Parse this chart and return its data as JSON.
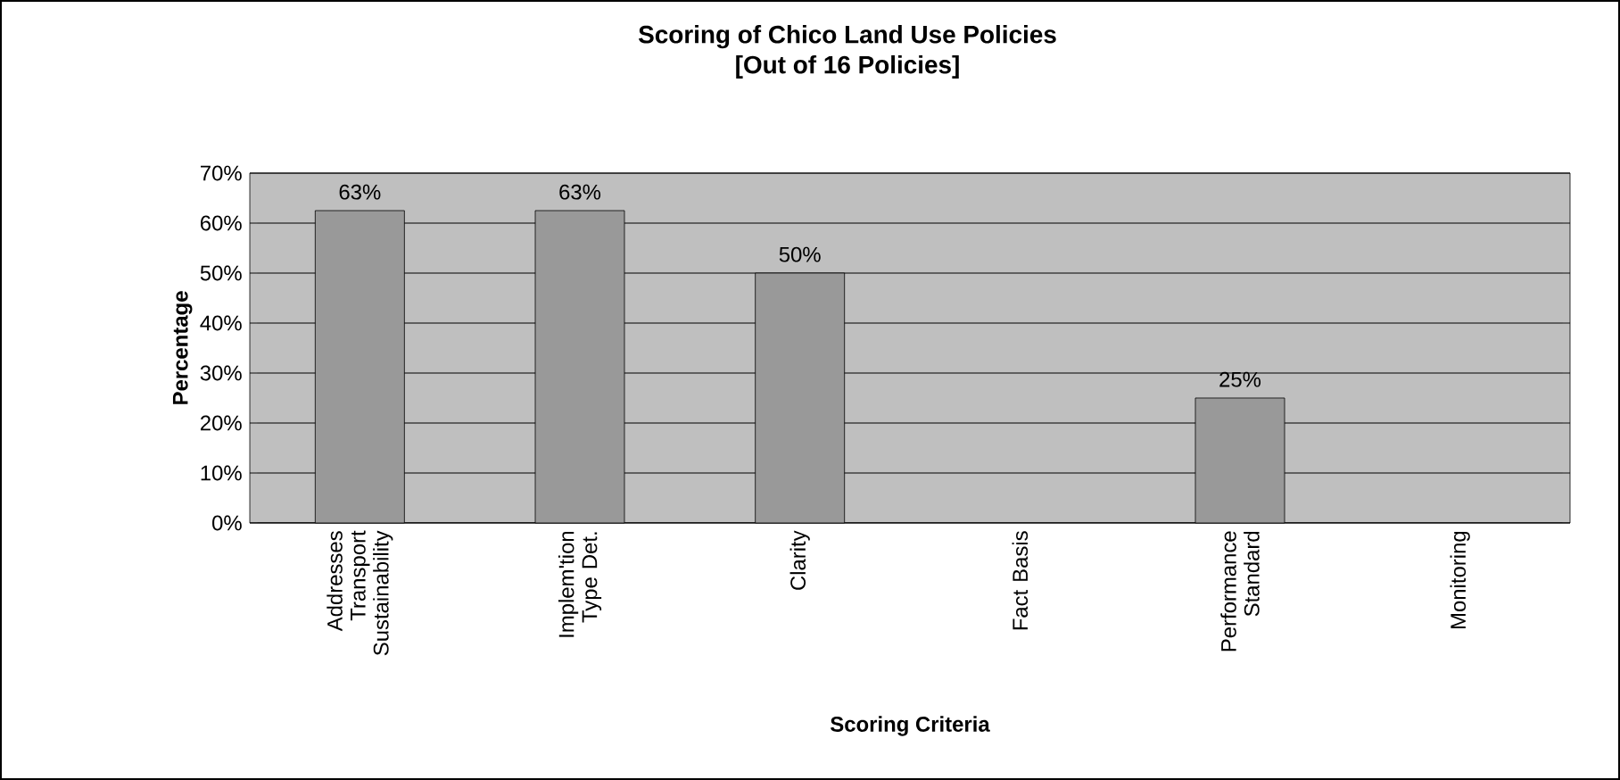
{
  "chart_data": {
    "type": "bar",
    "title": "Scoring of Chico Land Use Policies\n[Out of 16 Policies]",
    "xlabel": "Scoring Criteria",
    "ylabel": "Percentage",
    "categories": [
      "Addresses Transport Sustainability",
      "Implem'tion Type Det.",
      "Clarity",
      "Fact Basis",
      "Performance Standard",
      "Monitoring"
    ],
    "values": [
      62.5,
      62.5,
      50,
      null,
      25,
      null
    ],
    "value_labels": [
      "63%",
      "63%",
      "50%",
      null,
      "25%",
      null
    ],
    "color": "#999999",
    "ylim": [
      0,
      70
    ],
    "yticks": [
      {
        "value": 0,
        "label": "0%"
      },
      {
        "value": 10,
        "label": "10%"
      },
      {
        "value": 20,
        "label": "20%"
      },
      {
        "value": 30,
        "label": "30%"
      },
      {
        "value": 40,
        "label": "40%"
      },
      {
        "value": 50,
        "label": "50%"
      },
      {
        "value": 60,
        "label": "60%"
      },
      {
        "value": 70,
        "label": "70%"
      }
    ],
    "grid": "y"
  }
}
